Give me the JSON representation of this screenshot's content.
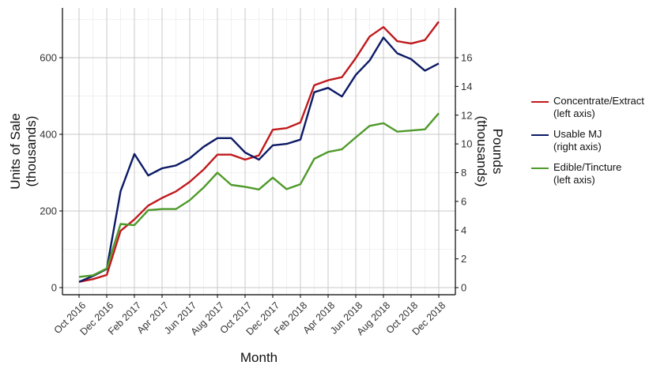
{
  "chart_data": {
    "type": "line",
    "xlabel": "Month",
    "ylabel": [
      "Units of Sale",
      "(thousands)"
    ],
    "y2label": [
      "Pounds",
      "(thousands)"
    ],
    "ylim": [
      0,
      700
    ],
    "y2lim": [
      0,
      18.7
    ],
    "yticks": [
      0,
      200,
      400,
      600
    ],
    "y2ticks": [
      0,
      2,
      4,
      6,
      8,
      10,
      12,
      14,
      16
    ],
    "grid": true,
    "legend_position": "right",
    "x_tick_labels": [
      "Oct 2016",
      "Dec 2016",
      "Feb 2017",
      "Apr 2017",
      "Jun 2017",
      "Aug 2017",
      "Oct 2017",
      "Dec 2017",
      "Feb 2018",
      "Apr 2018",
      "Jun 2018",
      "Aug 2018",
      "Oct 2018",
      "Dec 2018"
    ],
    "months": [
      "Oct 2016",
      "Nov 2016",
      "Dec 2016",
      "Jan 2017",
      "Feb 2017",
      "Mar 2017",
      "Apr 2017",
      "May 2017",
      "Jun 2017",
      "Jul 2017",
      "Aug 2017",
      "Sep 2017",
      "Oct 2017",
      "Nov 2017",
      "Dec 2017",
      "Jan 2018",
      "Feb 2018",
      "Mar 2018",
      "Apr 2018",
      "May 2018",
      "Jun 2018",
      "Jul 2018",
      "Aug 2018",
      "Sep 2018",
      "Oct 2018",
      "Nov 2018",
      "Dec 2018"
    ],
    "series": [
      {
        "name": "Concentrate/Extract",
        "legend_lines": [
          "Concentrate/Extract",
          "(left axis)"
        ],
        "axis": "left",
        "color": "#c0191c",
        "values": [
          15,
          22,
          33,
          148,
          178,
          214,
          234,
          251,
          276,
          308,
          347,
          347,
          334,
          345,
          412,
          416,
          431,
          528,
          541,
          549,
          599,
          655,
          680,
          643,
          637,
          646,
          694
        ]
      },
      {
        "name": "Usable MJ",
        "legend_lines": [
          "Usable MJ",
          "(right axis)"
        ],
        "axis": "right",
        "color": "#0c1a66",
        "values": [
          0.4,
          0.8,
          1.3,
          6.7,
          9.3,
          7.8,
          8.3,
          8.5,
          9.0,
          9.8,
          10.4,
          10.4,
          9.4,
          8.9,
          9.9,
          10.0,
          10.3,
          13.6,
          13.9,
          13.3,
          14.8,
          15.8,
          17.4,
          16.3,
          15.9,
          15.1,
          15.6
        ]
      },
      {
        "name": "Edible/Tincture",
        "legend_lines": [
          "Edible/Tincture",
          "(left axis)"
        ],
        "axis": "left",
        "color": "#4e9a2a",
        "values": [
          28,
          32,
          50,
          166,
          163,
          202,
          205,
          205,
          228,
          261,
          300,
          268,
          263,
          256,
          287,
          257,
          270,
          336,
          354,
          361,
          392,
          422,
          429,
          407,
          410,
          413,
          455
        ]
      }
    ]
  }
}
